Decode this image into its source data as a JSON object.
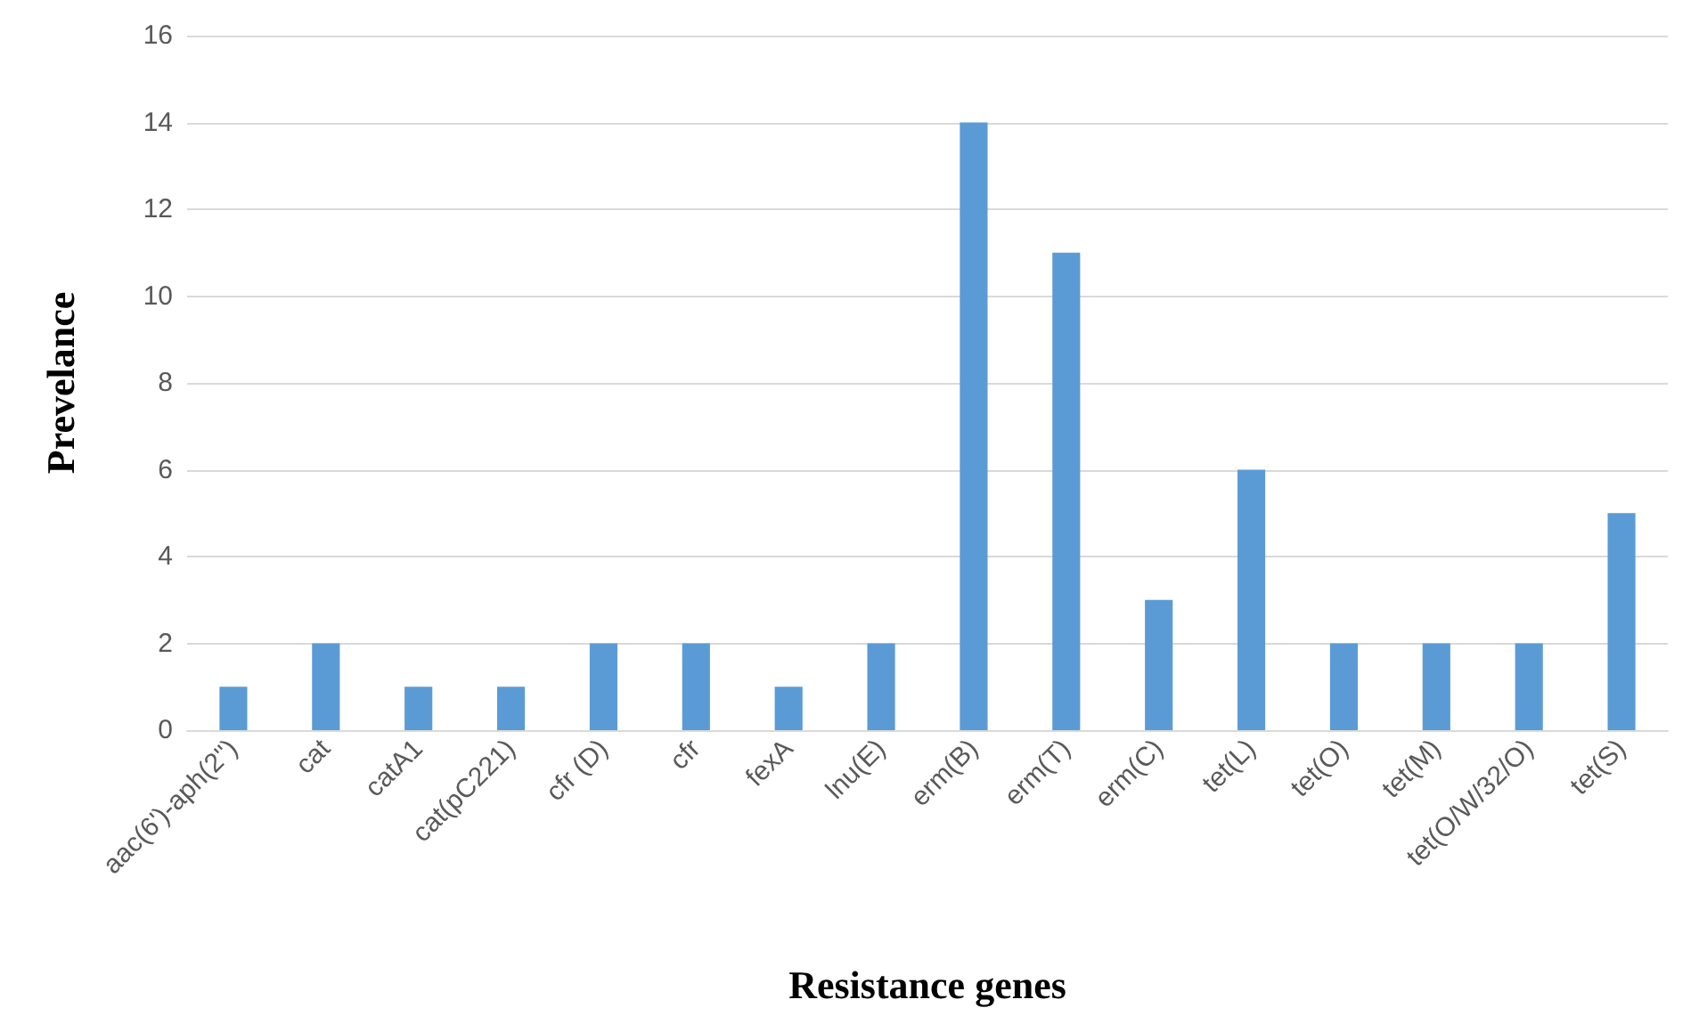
{
  "chart_data": {
    "type": "bar",
    "xlabel": "Resistance genes",
    "ylabel": "Prevelance",
    "categories": [
      "aac(6')-aph(2'')",
      "cat",
      "catA1",
      "cat(pC221)",
      "cfr (D)",
      "cfr",
      "fexA",
      "lnu(E)",
      "erm(B)",
      "erm(T)",
      "erm(C)",
      "tet(L)",
      "tet(O)",
      "tet(M)",
      "tet(O/W/32/O)",
      "tet(S)"
    ],
    "values": [
      1,
      2,
      1,
      1,
      2,
      2,
      1,
      2,
      14,
      11,
      3,
      6,
      2,
      2,
      2,
      5
    ],
    "color": "#5b9bd5",
    "ylim": [
      0,
      16
    ],
    "yticks": [
      0,
      2,
      4,
      6,
      8,
      10,
      12,
      14,
      16
    ],
    "grid": "y"
  }
}
